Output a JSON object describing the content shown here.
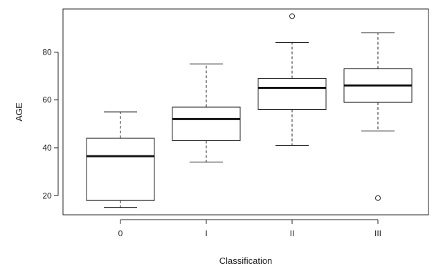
{
  "chart_data": {
    "type": "box",
    "xlabel": "Classification",
    "ylabel": "AGE",
    "ylim": [
      12,
      98
    ],
    "yticks": [
      20,
      40,
      60,
      80
    ],
    "categories": [
      "0",
      "I",
      "II",
      "III"
    ],
    "boxes": [
      {
        "category": "0",
        "whisker_low": 15,
        "q1": 18,
        "median": 36.5,
        "q3": 44,
        "whisker_high": 55,
        "outliers": []
      },
      {
        "category": "I",
        "whisker_low": 34,
        "q1": 43,
        "median": 52,
        "q3": 57,
        "whisker_high": 75,
        "outliers": []
      },
      {
        "category": "II",
        "whisker_low": 41,
        "q1": 56,
        "median": 65,
        "q3": 69,
        "whisker_high": 84,
        "outliers": [
          95
        ]
      },
      {
        "category": "III",
        "whisker_low": 47,
        "q1": 59,
        "median": 66,
        "q3": 73,
        "whisker_high": 88,
        "outliers": [
          19
        ]
      }
    ],
    "grid": false,
    "legend": "none"
  }
}
